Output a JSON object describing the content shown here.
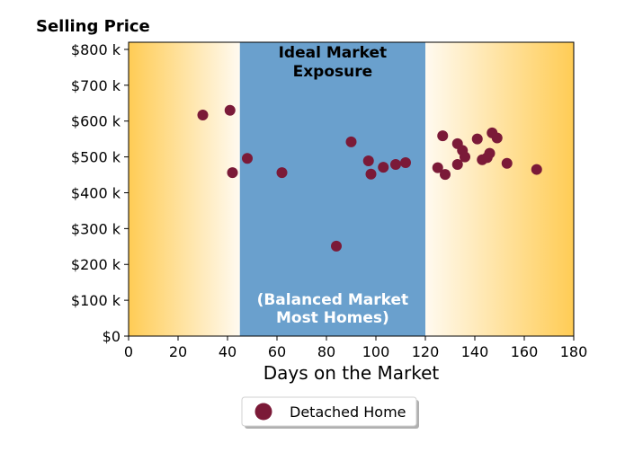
{
  "chart_data": {
    "type": "scatter",
    "ylabel": "Selling Price",
    "xlabel": "Days on the Market",
    "xlim": [
      0,
      180
    ],
    "ylim": [
      0,
      820000
    ],
    "xticks": [
      0,
      20,
      40,
      60,
      80,
      100,
      120,
      140,
      160,
      180
    ],
    "xtick_labels": [
      "0",
      "20",
      "40",
      "60",
      "80",
      "100",
      "120",
      "140",
      "160",
      "180"
    ],
    "yticks": [
      0,
      100000,
      200000,
      300000,
      400000,
      500000,
      600000,
      700000,
      800000
    ],
    "ytick_labels": [
      "$0",
      "$100 k",
      "$200 k",
      "$300 k",
      "$400 k",
      "$500 k",
      "$600 k",
      "$700 k",
      "$800 k"
    ],
    "grid": false,
    "legend_position": "below",
    "bands": [
      {
        "x_start": 45,
        "x_end": 120,
        "color": "#6aa0cd",
        "label_top": [
          "Ideal Market",
          "Exposure"
        ],
        "label_bottom": [
          "(Balanced Market",
          "Most Homes)"
        ]
      }
    ],
    "background_gradient": {
      "edge_color": "#ffcc55",
      "center_color": "#fffaf0"
    },
    "series": [
      {
        "name": "Detached Home",
        "color": "#7b1a38",
        "x": [
          30,
          41,
          42,
          48,
          62,
          84,
          90,
          97,
          98,
          103,
          108,
          112,
          125,
          127,
          128,
          133,
          133,
          135,
          136,
          141,
          143,
          145,
          146,
          147,
          149,
          153,
          165
        ],
        "y": [
          617000,
          630000,
          456000,
          496000,
          456000,
          251000,
          542000,
          489000,
          452000,
          471000,
          479000,
          484000,
          470000,
          559000,
          451000,
          537000,
          479000,
          518000,
          500000,
          550000,
          492000,
          498000,
          510000,
          567000,
          553000,
          482000,
          465000
        ]
      }
    ]
  }
}
